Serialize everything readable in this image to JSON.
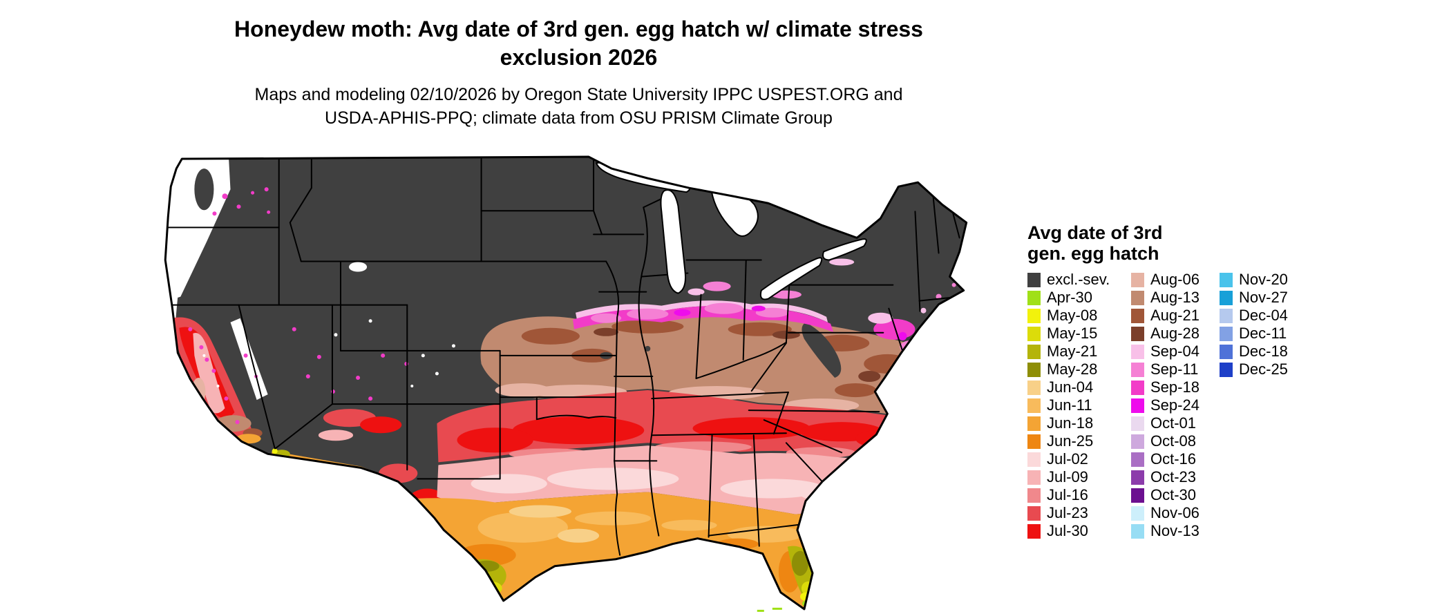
{
  "title": {
    "line1": "Honeydew moth: Avg date of 3rd gen. egg hatch w/ climate stress",
    "line2": "exclusion 2026"
  },
  "subtitle": {
    "line1": "Maps and modeling 02/10/2026 by Oregon State University IPPC USPEST.ORG and",
    "line2": "USDA-APHIS-PPQ; climate data from OSU PRISM Climate Group"
  },
  "legend": {
    "title_line1": "Avg date of 3rd",
    "title_line2": "gen. egg hatch",
    "columns": [
      {
        "entries": [
          {
            "label": "excl.-sev.",
            "color": "#404040"
          },
          {
            "label": "Apr-30",
            "color": "#a0e018"
          },
          {
            "label": "May-08",
            "color": "#f2f20c"
          },
          {
            "label": "May-15",
            "color": "#dcdc0a"
          },
          {
            "label": "May-21",
            "color": "#b4b40a"
          },
          {
            "label": "May-28",
            "color": "#8e8e06"
          },
          {
            "label": "Jun-04",
            "color": "#f8d088"
          },
          {
            "label": "Jun-11",
            "color": "#f8bb5c"
          },
          {
            "label": "Jun-18",
            "color": "#f4a434"
          },
          {
            "label": "Jun-25",
            "color": "#ee8612"
          },
          {
            "label": "Jul-02",
            "color": "#fbd9da"
          },
          {
            "label": "Jul-09",
            "color": "#f7b3b5"
          },
          {
            "label": "Jul-16",
            "color": "#f0888c"
          },
          {
            "label": "Jul-23",
            "color": "#e84a50"
          },
          {
            "label": "Jul-30",
            "color": "#ee1111"
          }
        ]
      },
      {
        "entries": [
          {
            "label": "Aug-06",
            "color": "#e6b3a3"
          },
          {
            "label": "Aug-13",
            "color": "#c18a70"
          },
          {
            "label": "Aug-21",
            "color": "#a05638"
          },
          {
            "label": "Aug-28",
            "color": "#7b3f2b"
          },
          {
            "label": "Sep-04",
            "color": "#f8c0e8"
          },
          {
            "label": "Sep-11",
            "color": "#f580d4"
          },
          {
            "label": "Sep-18",
            "color": "#f23cc8"
          },
          {
            "label": "Sep-24",
            "color": "#ee0cec"
          },
          {
            "label": "Oct-01",
            "color": "#ead9ef"
          },
          {
            "label": "Oct-08",
            "color": "#cea9de"
          },
          {
            "label": "Oct-16",
            "color": "#aa6fc4"
          },
          {
            "label": "Oct-23",
            "color": "#8c3cab"
          },
          {
            "label": "Oct-30",
            "color": "#6c1090"
          },
          {
            "label": "Nov-06",
            "color": "#cdeffb"
          },
          {
            "label": "Nov-13",
            "color": "#97ddf4"
          }
        ]
      },
      {
        "entries": [
          {
            "label": "Nov-20",
            "color": "#4ac3eb"
          },
          {
            "label": "Nov-27",
            "color": "#18a0d8"
          },
          {
            "label": "Dec-04",
            "color": "#b5c9ee"
          },
          {
            "label": "Dec-11",
            "color": "#82a1e4"
          },
          {
            "label": "Dec-18",
            "color": "#4f72d8"
          },
          {
            "label": "Dec-25",
            "color": "#1e40c8"
          }
        ]
      }
    ]
  },
  "map": {
    "excluded_color": "#404040",
    "water_color": "#ffffff",
    "border_color": "#000000"
  }
}
